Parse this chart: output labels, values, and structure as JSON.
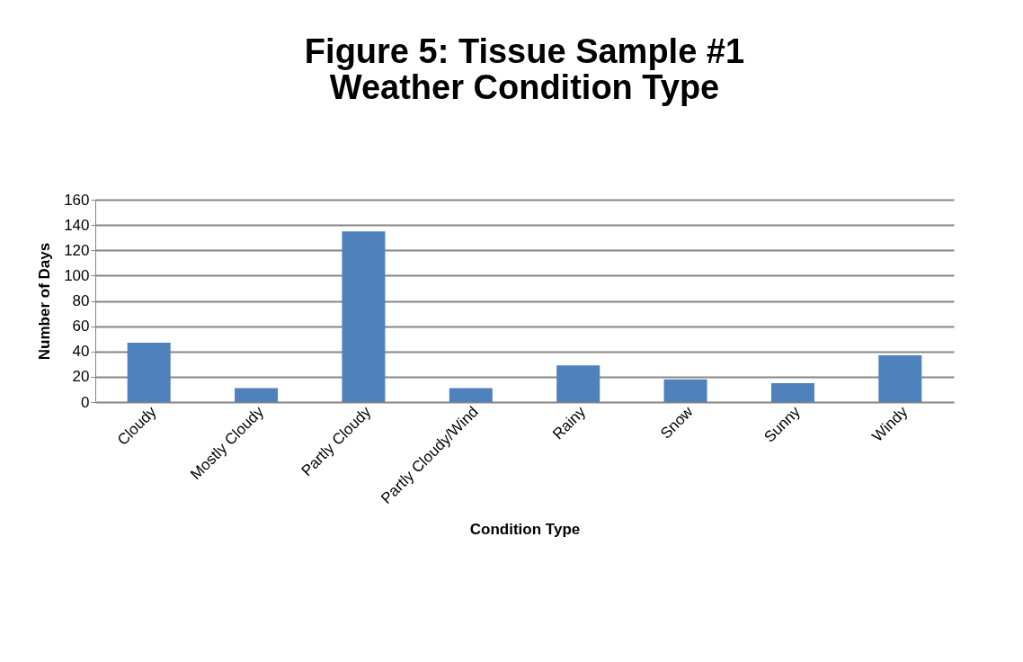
{
  "chart_data": {
    "type": "bar",
    "title": "Figure 5: Tissue Sample #1\nWeather Condition Type",
    "xlabel": "Condition Type",
    "ylabel": "Number of Days",
    "categories": [
      "Cloudy",
      "Mostly Cloudy",
      "Partly Cloudy",
      "Partly Cloudy/Wind",
      "Rainy",
      "Snow",
      "Sunny",
      "Windy"
    ],
    "values": [
      47,
      11,
      135,
      11,
      29,
      18,
      15,
      37
    ],
    "color": "#4f81bd",
    "ylim": [
      0,
      160
    ],
    "yticks": [
      0,
      20,
      40,
      60,
      80,
      100,
      120,
      140,
      160
    ],
    "grid": "y"
  }
}
